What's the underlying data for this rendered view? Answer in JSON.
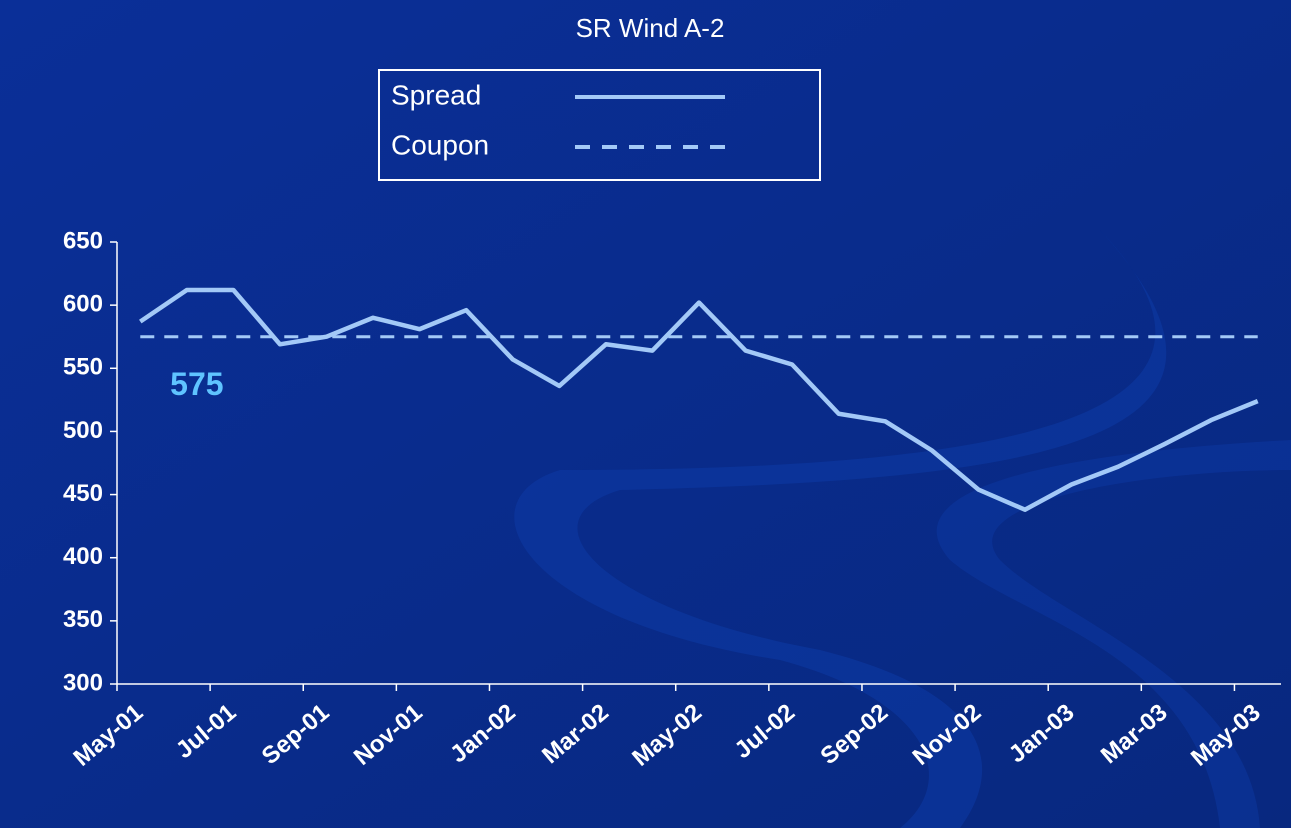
{
  "chart_data": {
    "type": "line",
    "title": "SR Wind A-2",
    "categories": [
      "May-01",
      null,
      "Jul-01",
      null,
      "Sep-01",
      null,
      "Nov-01",
      null,
      "Jan-02",
      null,
      "Mar-02",
      null,
      "May-02",
      null,
      "Jul-02",
      null,
      "Sep-02",
      null,
      "Nov-02",
      null,
      "Jan-03",
      null,
      "Mar-03",
      null,
      "May-03"
    ],
    "series": [
      {
        "name": "Spread",
        "color": "#a3c9f7",
        "style": "solid",
        "values": [
          587,
          612,
          612,
          569,
          575,
          590,
          581,
          596,
          557,
          536,
          569,
          564,
          602,
          564,
          553,
          514,
          508,
          485,
          454,
          438,
          458,
          472,
          490,
          509,
          524
        ]
      },
      {
        "name": "Coupon",
        "color": "#a3c9f7",
        "style": "dashed",
        "values": [
          575,
          575,
          575,
          575,
          575,
          575,
          575,
          575,
          575,
          575,
          575,
          575,
          575,
          575,
          575,
          575,
          575,
          575,
          575,
          575,
          575,
          575,
          575,
          575,
          575
        ]
      }
    ],
    "annotations": [
      {
        "text": "575",
        "category": 1,
        "value": 575,
        "color": "#5fc3ff"
      }
    ],
    "ylim": [
      300,
      650
    ],
    "yticks": [
      300,
      350,
      400,
      450,
      500,
      550,
      600,
      650
    ],
    "grid": false
  }
}
